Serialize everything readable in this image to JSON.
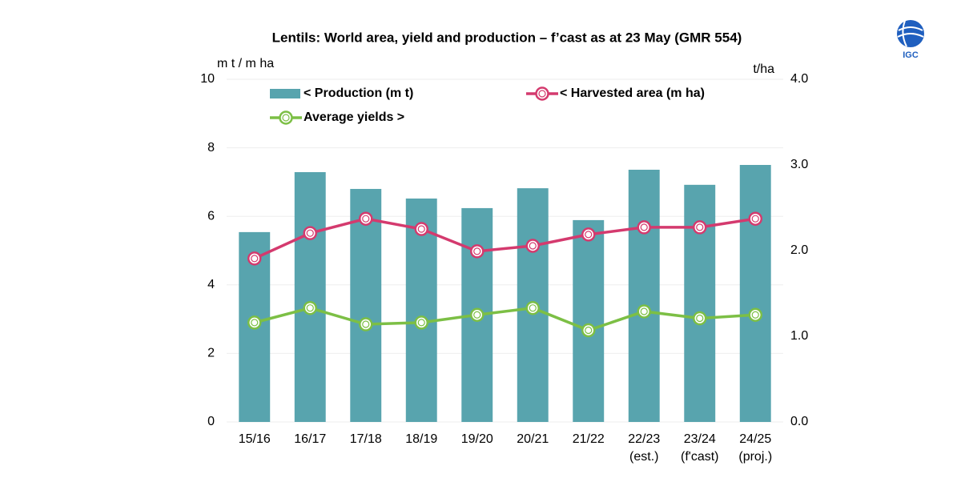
{
  "chart_data": {
    "type": "bar-line",
    "title": "Lentils: World area, yield and production – f’cast as at 23 May (GMR 554)",
    "y_label": "m t / m ha",
    "y2_label": "t/ha",
    "logo_text": "IGC",
    "categories": [
      [
        "15/16"
      ],
      [
        "16/17"
      ],
      [
        "17/18"
      ],
      [
        "18/19"
      ],
      [
        "19/20"
      ],
      [
        "20/21"
      ],
      [
        "21/22"
      ],
      [
        "22/23",
        "(est.)"
      ],
      [
        "23/24",
        "(f'cast)"
      ],
      [
        "24/25",
        "(proj.)"
      ]
    ],
    "series": [
      {
        "name": "< Production (m t)",
        "type": "bar",
        "color": "#58a4ae",
        "values": [
          5.54,
          7.29,
          6.8,
          6.52,
          6.24,
          6.82,
          5.89,
          7.36,
          6.92,
          7.5
        ]
      },
      {
        "name": "< Harvested area (m ha)",
        "type": "line",
        "color": "#d43a6e",
        "values": [
          4.77,
          5.51,
          5.93,
          5.63,
          4.98,
          5.14,
          5.47,
          5.68,
          5.68,
          5.93
        ]
      },
      {
        "name": "Average yields >",
        "type": "line",
        "axis": "y2",
        "color": "#7cbf45",
        "values": [
          1.16,
          1.33,
          1.14,
          1.16,
          1.25,
          1.33,
          1.07,
          1.29,
          1.21,
          1.25
        ]
      }
    ],
    "ylim": [
      0,
      10
    ],
    "yticks": [
      0,
      2,
      4,
      6,
      8,
      10
    ],
    "y2lim": [
      0,
      4
    ],
    "y2ticks": [
      {
        "value": 0,
        "label": "0.0"
      },
      {
        "value": 1,
        "label": "1.0"
      },
      {
        "value": 2,
        "label": "2.0"
      },
      {
        "value": 3,
        "label": "3.0"
      },
      {
        "value": 4,
        "label": "4.0"
      }
    ],
    "grid": true
  }
}
